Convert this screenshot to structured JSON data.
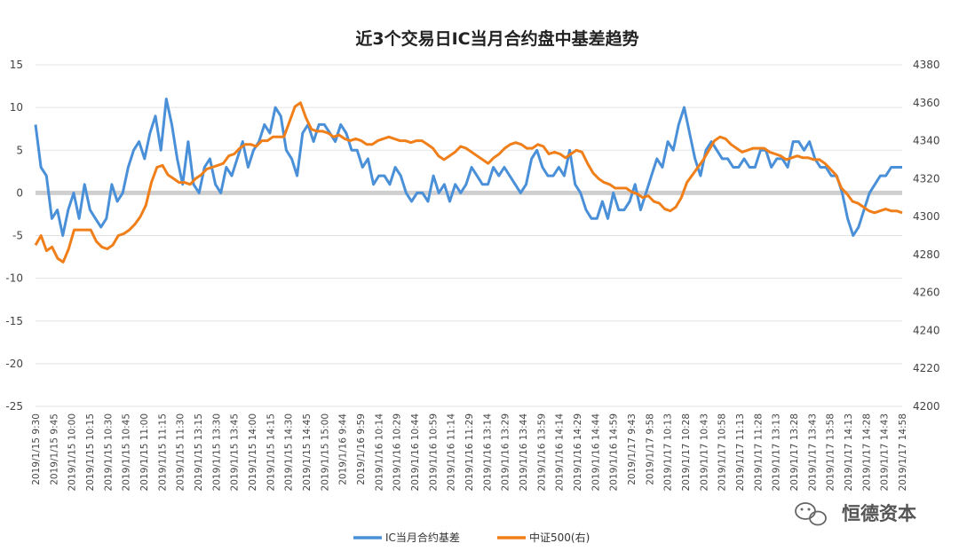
{
  "chart_data": {
    "type": "line",
    "title": "近3个交易日IC当月合约盘中基差趋势",
    "y_left": {
      "lim": [
        -25,
        15
      ],
      "ticks": [
        15,
        10,
        5,
        0,
        -5,
        -10,
        -15,
        -20,
        -25
      ]
    },
    "y_right": {
      "lim": [
        4200,
        4380
      ],
      "ticks": [
        4380,
        4360,
        4340,
        4320,
        4300,
        4280,
        4260,
        4240,
        4220,
        4200
      ]
    },
    "x_tick_labels": [
      "2019/1/15 9:30",
      "2019/1/15 9:45",
      "2019/1/15 10:00",
      "2019/1/15 10:15",
      "2019/1/15 10:30",
      "2019/1/15 10:45",
      "2019/1/15 11:00",
      "2019/1/15 11:15",
      "2019/1/15 11:30",
      "2019/1/15 13:15",
      "2019/1/15 13:30",
      "2019/1/15 13:45",
      "2019/1/15 14:00",
      "2019/1/15 14:15",
      "2019/1/15 14:30",
      "2019/1/15 14:45",
      "2019/1/15 15:00",
      "2019/1/16 9:44",
      "2019/1/16 9:59",
      "2019/1/16 10:14",
      "2019/1/16 10:29",
      "2019/1/16 10:44",
      "2019/1/16 10:59",
      "2019/1/16 11:14",
      "2019/1/16 11:29",
      "2019/1/16 13:14",
      "2019/1/16 13:29",
      "2019/1/16 13:44",
      "2019/1/16 13:59",
      "2019/1/16 14:14",
      "2019/1/16 14:29",
      "2019/1/16 14:44",
      "2019/1/16 14:59",
      "2019/1/17 9:43",
      "2019/1/17 9:58",
      "2019/1/17 10:13",
      "2019/1/17 10:28",
      "2019/1/17 10:43",
      "2019/1/17 10:58",
      "2019/1/17 11:13",
      "2019/1/17 11:28",
      "2019/1/17 13:13",
      "2019/1/17 13:28",
      "2019/1/17 13:43",
      "2019/1/17 13:58",
      "2019/1/17 14:13",
      "2019/1/17 14:28",
      "2019/1/17 14:43",
      "2019/1/17 14:58"
    ],
    "series": [
      {
        "name": "IC当月合约基差",
        "axis": "left",
        "color": "#4a90d9",
        "values": [
          8,
          3,
          2,
          -3,
          -2,
          -5,
          -2,
          0,
          -3,
          1,
          -2,
          -3,
          -4,
          -3,
          1,
          -1,
          0,
          3,
          5,
          6,
          4,
          7,
          9,
          5,
          11,
          8,
          4,
          1,
          6,
          1,
          0,
          3,
          4,
          1,
          0,
          3,
          2,
          4,
          6,
          3,
          5,
          6,
          8,
          7,
          10,
          9,
          5,
          4,
          2,
          7,
          8,
          6,
          8,
          8,
          7,
          6,
          8,
          7,
          5,
          5,
          3,
          4,
          1,
          2,
          2,
          1,
          3,
          2,
          0,
          -1,
          0,
          0,
          -1,
          2,
          0,
          1,
          -1,
          1,
          0,
          1,
          3,
          2,
          1,
          1,
          3,
          2,
          3,
          2,
          1,
          0,
          1,
          4,
          5,
          3,
          2,
          2,
          3,
          2,
          5,
          1,
          0,
          -2,
          -3,
          -3,
          -1,
          -3,
          0,
          -2,
          -2,
          -1,
          1,
          -2,
          0,
          2,
          4,
          3,
          6,
          5,
          8,
          10,
          7,
          4,
          2,
          5,
          6,
          5,
          4,
          4,
          3,
          3,
          4,
          3,
          3,
          5,
          5,
          3,
          4,
          4,
          3,
          6,
          6,
          5,
          6,
          4,
          3,
          3,
          2,
          2,
          0,
          -3,
          -5,
          -4,
          -2,
          0,
          1,
          2,
          2,
          3,
          3,
          3
        ]
      },
      {
        "name": "中证500(右)",
        "axis": "right",
        "color": "#f07f1a",
        "values": [
          4285,
          4290,
          4282,
          4284,
          4278,
          4276,
          4283,
          4293,
          4293,
          4293,
          4293,
          4287,
          4284,
          4283,
          4285,
          4290,
          4291,
          4293,
          4296,
          4300,
          4306,
          4318,
          4326,
          4327,
          4322,
          4320,
          4318,
          4318,
          4317,
          4320,
          4322,
          4325,
          4326,
          4327,
          4328,
          4332,
          4333,
          4336,
          4338,
          4338,
          4337,
          4340,
          4340,
          4342,
          4342,
          4342,
          4350,
          4358,
          4360,
          4352,
          4346,
          4345,
          4345,
          4344,
          4342,
          4343,
          4341,
          4340,
          4341,
          4340,
          4338,
          4338,
          4340,
          4341,
          4342,
          4341,
          4340,
          4340,
          4339,
          4340,
          4340,
          4338,
          4336,
          4332,
          4330,
          4332,
          4334,
          4337,
          4336,
          4334,
          4332,
          4330,
          4328,
          4331,
          4333,
          4336,
          4338,
          4339,
          4338,
          4336,
          4336,
          4338,
          4337,
          4333,
          4334,
          4333,
          4331,
          4333,
          4335,
          4334,
          4328,
          4323,
          4320,
          4318,
          4317,
          4315,
          4315,
          4315,
          4313,
          4312,
          4310,
          4311,
          4308,
          4307,
          4304,
          4303,
          4305,
          4310,
          4318,
          4322,
          4326,
          4330,
          4335,
          4340,
          4342,
          4341,
          4338,
          4336,
          4334,
          4335,
          4336,
          4336,
          4336,
          4334,
          4333,
          4332,
          4330,
          4331,
          4332,
          4331,
          4331,
          4330,
          4330,
          4328,
          4325,
          4322,
          4315,
          4312,
          4308,
          4307,
          4305,
          4303,
          4302,
          4303,
          4304,
          4303,
          4303,
          4302
        ]
      }
    ],
    "zero_line": true,
    "grid": true,
    "legend_position": "bottom"
  },
  "watermark": {
    "text": "恒德资本",
    "icon": "wechat-icon"
  }
}
